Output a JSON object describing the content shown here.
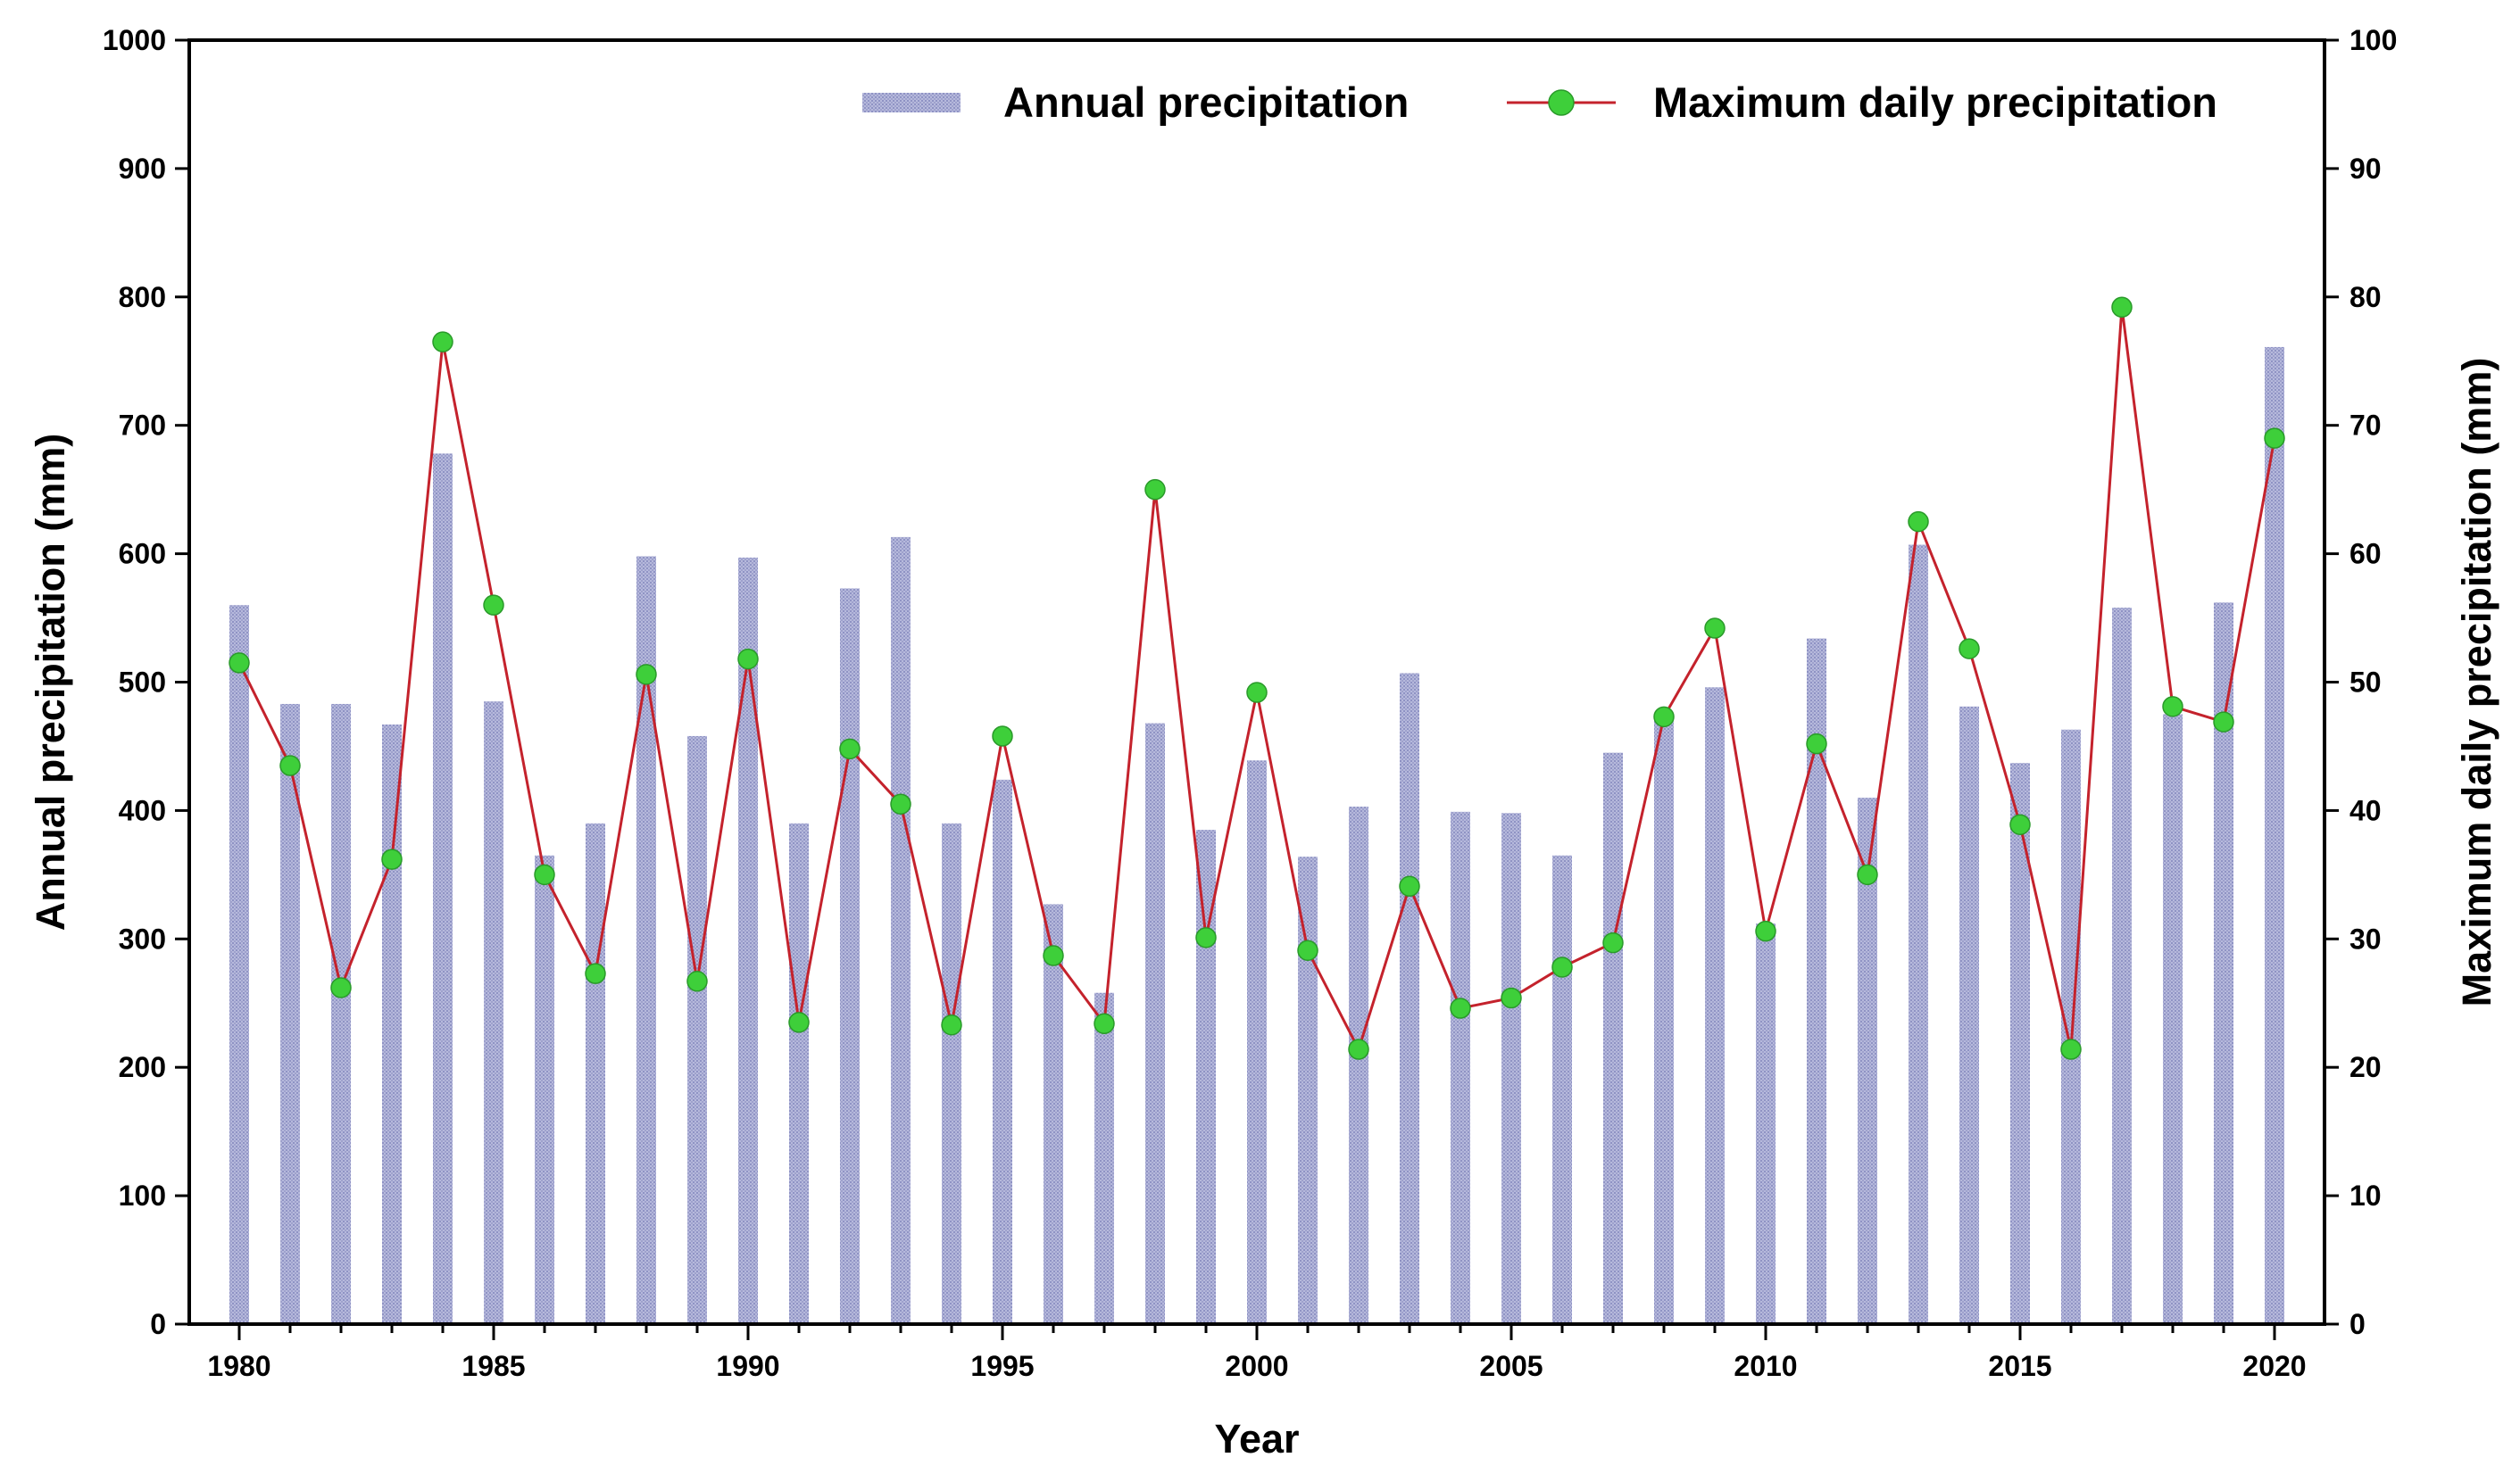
{
  "chart_data": {
    "type": "bar+line",
    "title": "",
    "xlabel": "Year",
    "ylabel": "Annual precipitation (mm)",
    "y2label": "Maximum daily precipitation (mm)",
    "xlim": [
      1980,
      2020
    ],
    "ylim": [
      0,
      1000
    ],
    "y2lim": [
      0,
      100
    ],
    "x_ticks": [
      "1980",
      "1985",
      "1990",
      "1995",
      "2000",
      "2005",
      "2010",
      "2015",
      "2020"
    ],
    "y_ticks": [
      "0",
      "100",
      "200",
      "300",
      "400",
      "500",
      "600",
      "700",
      "800",
      "900",
      "1000"
    ],
    "y2_ticks": [
      "0",
      "10",
      "20",
      "30",
      "40",
      "50",
      "60",
      "70",
      "80",
      "90",
      "100"
    ],
    "legend_position": "top-right",
    "grid": false,
    "years": [
      1980,
      1981,
      1982,
      1983,
      1984,
      1985,
      1986,
      1987,
      1988,
      1989,
      1990,
      1991,
      1992,
      1993,
      1994,
      1995,
      1996,
      1997,
      1998,
      1999,
      2000,
      2001,
      2002,
      2003,
      2004,
      2005,
      2006,
      2007,
      2008,
      2009,
      2010,
      2011,
      2012,
      2013,
      2014,
      2015,
      2016,
      2017,
      2018,
      2019,
      2020
    ],
    "series": [
      {
        "name": "Annual precipitation",
        "type": "bar",
        "axis": "left",
        "color": "#a9acd6",
        "values": [
          560,
          483,
          483,
          467,
          678,
          485,
          365,
          390,
          598,
          458,
          597,
          390,
          573,
          613,
          390,
          424,
          327,
          258,
          468,
          385,
          439,
          364,
          403,
          507,
          399,
          398,
          365,
          445,
          470,
          496,
          312,
          534,
          410,
          607,
          481,
          437,
          463,
          558,
          475,
          562,
          761
        ]
      },
      {
        "name": "Maximum daily precipitation",
        "type": "line",
        "axis": "right",
        "line_color": "#c4222c",
        "marker_color": "#3ecf3a",
        "values": [
          51.5,
          43.5,
          26.2,
          36.2,
          76.5,
          56.0,
          35.0,
          27.3,
          50.6,
          26.7,
          51.8,
          23.5,
          44.8,
          40.5,
          23.3,
          45.8,
          28.7,
          23.4,
          65.0,
          30.1,
          49.2,
          29.1,
          21.4,
          34.1,
          24.6,
          25.4,
          27.8,
          29.7,
          47.3,
          54.2,
          30.6,
          45.2,
          35.0,
          62.5,
          52.6,
          38.9,
          21.4,
          79.2,
          48.1,
          46.9,
          69.0
        ]
      }
    ]
  }
}
